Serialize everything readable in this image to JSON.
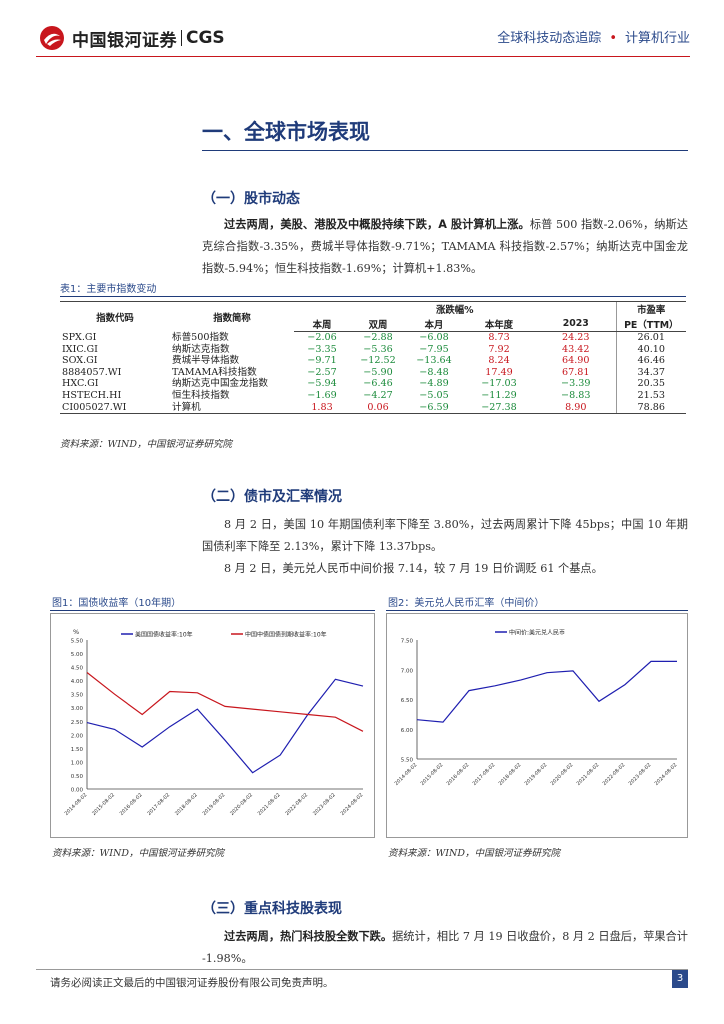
{
  "header": {
    "logo_cn": "中国银河证券",
    "logo_en": "CGS",
    "report_series": "全球科技动态追踪",
    "industry": "计算机行业"
  },
  "section1": {
    "title": "一、全球市场表现"
  },
  "stock": {
    "heading": "（一）股市动态",
    "lead": "过去两周，美股、港股及中概股持续下跌，A 股计算机上涨。",
    "text": "标普 500 指数-2.06%，纳斯达克综合指数-3.35%，费城半导体指数-9.71%；TAMAMA 科技指数-2.57%；纳斯达克中国金龙指数-5.94%；恒生科技指数-1.69%；计算机+1.83%。"
  },
  "table": {
    "caption": "表1：主要市指数变动",
    "headers": {
      "code": "指数代码",
      "name": "指数简称",
      "change_group": "涨跌幅%",
      "week": "本周",
      "two_weeks": "双周",
      "month": "本月",
      "ytd": "本年度",
      "year2023": "2023",
      "pe_top": "市盈率",
      "pe_bottom": "PE（TTM）"
    },
    "rows": [
      {
        "code": "SPX.GI",
        "name": "标普500指数",
        "week": "−2.06",
        "two_weeks": "−2.88",
        "month": "−6.08",
        "ytd": "8.73",
        "year2023": "24.23",
        "pe": "26.01"
      },
      {
        "code": "IXIC.GI",
        "name": "纳斯达克指数",
        "week": "−3.35",
        "two_weeks": "−5.36",
        "month": "−7.95",
        "ytd": "7.92",
        "year2023": "43.42",
        "pe": "40.10"
      },
      {
        "code": "SOX.GI",
        "name": "费城半导体指数",
        "week": "−9.71",
        "two_weeks": "−12.52",
        "month": "−13.64",
        "ytd": "8.24",
        "year2023": "64.90",
        "pe": "46.46"
      },
      {
        "code": "8884057.WI",
        "name": "TAMAMA科技指数",
        "week": "−2.57",
        "two_weeks": "−5.90",
        "month": "−8.48",
        "ytd": "17.49",
        "year2023": "67.81",
        "pe": "34.37"
      },
      {
        "code": "HXC.GI",
        "name": "纳斯达克中国金龙指数",
        "week": "−5.94",
        "two_weeks": "−6.46",
        "month": "−4.89",
        "ytd": "−17.03",
        "year2023": "−3.39",
        "pe": "20.35"
      },
      {
        "code": "HSTECH.HI",
        "name": "恒生科技指数",
        "week": "−1.69",
        "two_weeks": "−4.27",
        "month": "−5.05",
        "ytd": "−11.29",
        "year2023": "−8.83",
        "pe": "21.53"
      },
      {
        "code": "CI005027.WI",
        "name": "计算机",
        "week": "1.83",
        "two_weeks": "0.06",
        "month": "−6.59",
        "ytd": "−27.38",
        "year2023": "8.90",
        "pe": "78.86"
      }
    ],
    "source": "资料来源：WIND，中国银河证券研究院"
  },
  "bond": {
    "heading": "（二）债市及汇率情况",
    "p1": "8 月 2 日，美国 10 年期国债利率下降至 3.80%，过去两周累计下降 45bps；中国 10 年期国债利率下降至 2.13%，累计下降 13.37bps。",
    "p2": "8 月 2 日，美元兑人民币中间价报 7.14，较 7 月 19 日价调贬 61 个基点。"
  },
  "colors": {
    "red": "#c8161d",
    "blue": "#1f1fb0",
    "green": "#1a8a3a",
    "navy": "#1f3b7a"
  },
  "chart_data": [
    {
      "type": "line",
      "caption": "图1：国债收益率（10年期）",
      "ylabel": "%",
      "ylim": [
        0,
        5.5
      ],
      "yticks": [
        "0.00",
        "0.50",
        "1.00",
        "1.50",
        "2.00",
        "2.50",
        "3.00",
        "3.50",
        "4.00",
        "4.50",
        "5.00",
        "5.50"
      ],
      "x": [
        "2014-08-02",
        "2015-08-02",
        "2016-08-02",
        "2017-08-02",
        "2018-08-02",
        "2019-08-02",
        "2020-08-02",
        "2021-08-02",
        "2022-08-02",
        "2023-08-02",
        "2024-08-02"
      ],
      "series": [
        {
          "name": "美国国债收益率:10年",
          "color": "#1f1fb0",
          "values": [
            2.45,
            2.2,
            1.55,
            2.3,
            2.95,
            1.8,
            0.6,
            1.25,
            2.75,
            4.05,
            3.8
          ]
        },
        {
          "name": "中国中债国债到期收益率:10年",
          "color": "#c8161d",
          "values": [
            4.3,
            3.5,
            2.75,
            3.6,
            3.55,
            3.05,
            2.95,
            2.85,
            2.75,
            2.65,
            2.13
          ]
        }
      ],
      "source": "资料来源：WIND，中国银河证券研究院"
    },
    {
      "type": "line",
      "caption": "图2：美元兑人民币汇率（中间价）",
      "ylim": [
        5.5,
        7.5
      ],
      "yticks": [
        "5.50",
        "6.00",
        "6.50",
        "7.00",
        "7.50"
      ],
      "x": [
        "2014-08-02",
        "2015-08-02",
        "2016-08-02",
        "2017-08-02",
        "2018-08-02",
        "2019-08-02",
        "2020-08-02",
        "2021-08-02",
        "2022-08-02",
        "2023-08-02",
        "2024-08-02"
      ],
      "series": [
        {
          "name": "中间价:美元兑人民币",
          "color": "#1f1fb0",
          "values": [
            6.16,
            6.12,
            6.65,
            6.73,
            6.83,
            6.95,
            6.98,
            6.47,
            6.75,
            7.14,
            7.14
          ]
        }
      ],
      "source": "资料来源：WIND，中国银河证券研究院"
    }
  ],
  "tech": {
    "heading": "（三）重点科技股表现",
    "lead": "过去两周，热门科技股全数下跌。",
    "text": "据统计，相比 7 月 19 日收盘价，8 月 2 日盘后，苹果合计 -1.98%。"
  },
  "footer": {
    "disclaimer": "请务必阅读正文最后的中国银河证券股份有限公司免责声明。",
    "page": "3"
  }
}
